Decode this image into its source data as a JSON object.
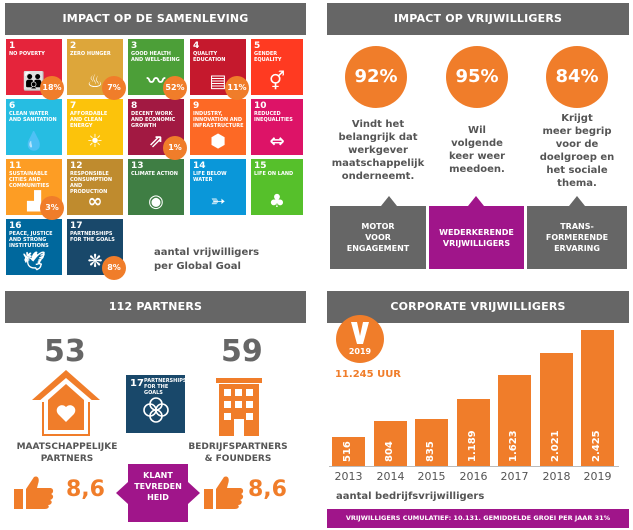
{
  "impact_society": {
    "header": "IMPACT OP DE SAMENLEVING",
    "goals": [
      {
        "num": "1",
        "label": "NO POVERTY",
        "color": "#e5243b",
        "icon": "people-icon"
      },
      {
        "num": "2",
        "label": "ZERO HUNGER",
        "color": "#dda63a",
        "icon": "bowl-icon"
      },
      {
        "num": "3",
        "label": "GOOD HEALTH AND WELL-BEING",
        "color": "#4c9f38",
        "icon": "heartbeat-icon"
      },
      {
        "num": "4",
        "label": "QUALITY EDUCATION",
        "color": "#c5192d",
        "icon": "book-icon"
      },
      {
        "num": "5",
        "label": "GENDER EQUALITY",
        "color": "#ff3a21",
        "icon": "gender-icon"
      },
      {
        "num": "6",
        "label": "CLEAN WATER AND SANITATION",
        "color": "#26bde2",
        "icon": "water-drop-icon"
      },
      {
        "num": "7",
        "label": "AFFORDABLE AND CLEAN ENERGY",
        "color": "#fcc30b",
        "icon": "sun-icon"
      },
      {
        "num": "8",
        "label": "DECENT WORK AND ECONOMIC GROWTH",
        "color": "#a21942",
        "icon": "growth-icon"
      },
      {
        "num": "9",
        "label": "INDUSTRY, INNOVATION AND INFRASTRUCTURE",
        "color": "#fd6925",
        "icon": "cubes-icon"
      },
      {
        "num": "10",
        "label": "REDUCED INEQUALITIES",
        "color": "#dd1367",
        "icon": "equality-icon"
      },
      {
        "num": "11",
        "label": "SUSTAINABLE CITIES AND COMMUNITIES",
        "color": "#fd9d24",
        "icon": "city-icon"
      },
      {
        "num": "12",
        "label": "RESPONSIBLE CONSUMPTION AND PRODUCTION",
        "color": "#bf8b2e",
        "icon": "infinity-icon"
      },
      {
        "num": "13",
        "label": "CLIMATE ACTION",
        "color": "#3f7e44",
        "icon": "eye-icon"
      },
      {
        "num": "14",
        "label": "LIFE BELOW WATER",
        "color": "#0a97d9",
        "icon": "fish-icon"
      },
      {
        "num": "15",
        "label": "LIFE ON LAND",
        "color": "#56c02b",
        "icon": "tree-icon"
      },
      {
        "num": "16",
        "label": "PEACE, JUSTICE AND STRONG INSTITUTIONS",
        "color": "#00689d",
        "icon": "dove-icon"
      },
      {
        "num": "17",
        "label": "PARTNERSHIPS FOR THE GOALS",
        "color": "#19486a",
        "icon": "rings-icon"
      }
    ],
    "badges": {
      "g1": "18%",
      "g2": "7%",
      "g3": "52%",
      "g4": "11%",
      "g8": "1%",
      "g11": "3%",
      "g17": "8%"
    },
    "caption_line1": "aantal vrijwilligers",
    "caption_line2": "per Global Goal"
  },
  "impact_volunteers": {
    "header": "IMPACT OP VRIJWILLIGERS",
    "stats": [
      {
        "value": "92%",
        "lines": [
          "Vindt het",
          "belangrijk dat",
          "werkgever",
          "maatschappelijk",
          "onderneemt."
        ]
      },
      {
        "value": "95%",
        "lines": [
          "Wil",
          "volgende",
          "keer weer",
          "meedoen."
        ]
      },
      {
        "value": "84%",
        "lines": [
          "Krijgt",
          "meer begrip",
          "voor de",
          "doelgroep en",
          "het sociale",
          "thema."
        ]
      }
    ],
    "boxes": [
      {
        "lines": [
          "MOTOR",
          "VOOR",
          "ENGAGEMENT"
        ],
        "color": "#666666"
      },
      {
        "lines": [
          "WEDERKERENDE",
          "VRIJWILLIGERS"
        ],
        "color": "#a0158a"
      },
      {
        "lines": [
          "TRANS-",
          "FORMERENDE",
          "ERVARING"
        ],
        "color": "#666666"
      }
    ]
  },
  "partners": {
    "header": "112 PARTNERS",
    "society_count": "53",
    "society_label_line1": "MAATSCHAPPELIJKE",
    "society_label_line2": "PARTNERS",
    "business_count": "59",
    "business_label_line1": "BEDRIJFSPARTNERS",
    "business_label_line2": "& FOUNDERS",
    "goal17_num": "17",
    "goal17_label": "PARTNERSHIPS FOR THE GOALS",
    "satisfaction_line1": "KLANT",
    "satisfaction_line2": "TEVREDEN",
    "satisfaction_line3": "HEID",
    "score_left": "8,6",
    "score_right": "8,6"
  },
  "corporate": {
    "header": "CORPORATE VRIJWILLIGERS",
    "badge_year": "2019",
    "hours": "11.245 UUR",
    "caption": "aantal bedrijfsvrijwilligers",
    "footer": "VRIJWILLIGERS CUMULATIEF: 10.131. GEMIDDELDE GROEI PER JAAR 31%"
  },
  "chart_data": {
    "type": "bar",
    "categories": [
      "2013",
      "2014",
      "2015",
      "2016",
      "2017",
      "2018",
      "2019"
    ],
    "values": [
      516,
      804,
      835,
      1189,
      1623,
      2021,
      2425
    ],
    "value_labels": [
      "516",
      "804",
      "835",
      "1.189",
      "1.623",
      "2.021",
      "2.425"
    ],
    "xlabel": "aantal bedrijfsvrijwilligers",
    "color": "#f07d2a",
    "grid": false
  },
  "colors": {
    "accent": "#f07d2a",
    "header": "#666666",
    "purple": "#a0158a",
    "navy": "#19486a"
  }
}
